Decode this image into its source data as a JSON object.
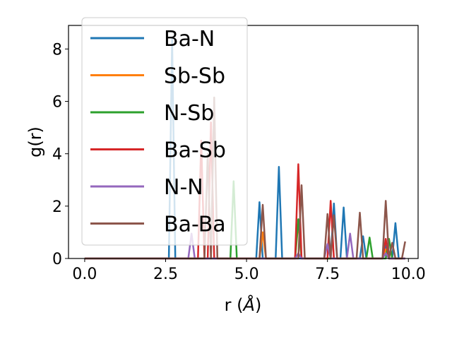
{
  "chart_data": {
    "type": "line",
    "xlabel_text": "r (",
    "xlabel_unit": "Å",
    "xlabel_close": ")",
    "ylabel": "g(r)",
    "xlim": [
      -0.5,
      10.3
    ],
    "ylim": [
      0,
      8.9
    ],
    "xticks": [
      0.0,
      2.5,
      5.0,
      7.5,
      10.0
    ],
    "xtick_labels": [
      "0.0",
      "2.5",
      "5.0",
      "7.5",
      "10.0"
    ],
    "yticks": [
      0,
      2,
      4,
      6,
      8
    ],
    "ytick_labels": [
      "0",
      "2",
      "4",
      "6",
      "8"
    ],
    "grid": false,
    "legend_position": "upper-left",
    "series": [
      {
        "name": "Ba-N",
        "color": "#1f77b4",
        "x": [
          0,
          2.6,
          2.7,
          2.8,
          5.3,
          5.4,
          5.5,
          5.9,
          6.0,
          6.1,
          7.6,
          7.7,
          7.8,
          7.9,
          8.0,
          8.1,
          8.5,
          8.6,
          8.7,
          9.2,
          9.3,
          9.4,
          9.5,
          9.6,
          9.7,
          9.8
        ],
        "y": [
          0,
          0,
          8.4,
          0,
          0,
          2.15,
          0,
          0,
          3.5,
          0,
          0,
          2.1,
          0,
          0,
          1.95,
          0,
          0,
          0.85,
          0,
          0,
          0.5,
          0,
          0,
          1.35,
          0,
          0
        ]
      },
      {
        "name": "Sb-Sb",
        "color": "#ff7f0e",
        "x": [
          0,
          5.4,
          5.5,
          5.6,
          6.5,
          6.6,
          6.7,
          9.2,
          9.3,
          9.4,
          9.9
        ],
        "y": [
          0,
          0,
          1.0,
          0,
          0,
          1.35,
          0,
          0,
          0.35,
          0,
          0
        ]
      },
      {
        "name": "N-Sb",
        "color": "#2ca02c",
        "x": [
          0,
          4.5,
          4.6,
          4.7,
          6.5,
          6.6,
          6.7,
          8.7,
          8.8,
          8.9,
          9.3,
          9.4,
          9.5,
          9.9
        ],
        "y": [
          0,
          0,
          2.95,
          0,
          0,
          1.5,
          0,
          0,
          0.8,
          0,
          0,
          0.75,
          0,
          0
        ]
      },
      {
        "name": "Ba-Sb",
        "color": "#d62728",
        "x": [
          0,
          3.5,
          3.6,
          3.7,
          3.8,
          3.9,
          4.0,
          6.5,
          6.6,
          6.7,
          7.5,
          7.6,
          7.7,
          9.2,
          9.3,
          9.4,
          9.9
        ],
        "y": [
          0,
          0,
          4.5,
          0,
          0,
          5.2,
          0,
          0,
          3.6,
          0,
          0,
          2.2,
          0,
          0,
          0.75,
          0,
          0
        ]
      },
      {
        "name": "N-N",
        "color": "#9467bd",
        "x": [
          0,
          3.2,
          3.3,
          3.4,
          6.5,
          6.6,
          6.7,
          7.4,
          7.5,
          7.6,
          8.1,
          8.2,
          8.3,
          9.2,
          9.3,
          9.4,
          9.9
        ],
        "y": [
          0,
          0,
          0.95,
          0,
          0,
          0.2,
          0,
          0,
          0.55,
          0,
          0,
          0.95,
          0,
          0,
          0.2,
          0,
          0
        ]
      },
      {
        "name": "Ba-Ba",
        "color": "#8c564b",
        "x": [
          0,
          3.7,
          3.8,
          3.9,
          4.0,
          4.1,
          5.4,
          5.5,
          5.6,
          6.6,
          6.7,
          6.8,
          7.4,
          7.5,
          7.6,
          7.7,
          7.8,
          8.4,
          8.5,
          8.6,
          9.2,
          9.3,
          9.4,
          9.5,
          9.6,
          9.8,
          9.9
        ],
        "y": [
          0,
          0,
          4.0,
          0,
          6.15,
          0,
          0,
          2.05,
          0,
          0,
          2.8,
          0,
          0,
          1.7,
          0,
          1.65,
          0,
          0,
          1.75,
          0,
          0,
          2.2,
          0,
          0.6,
          0,
          0,
          0.65
        ]
      }
    ]
  }
}
